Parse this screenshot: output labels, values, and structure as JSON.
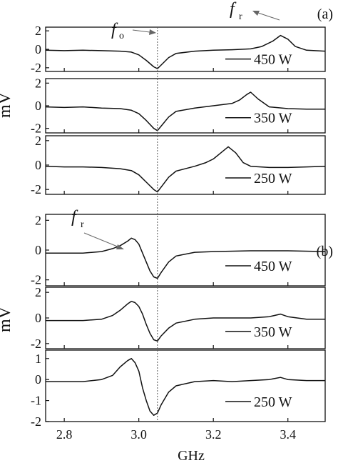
{
  "chart_data": {
    "type": "line",
    "x_label": "GHz",
    "y_label": "mV",
    "x_range": [
      2.75,
      3.5
    ],
    "x_ticks": [
      "2.8",
      "3.0",
      "3.2",
      "3.4"
    ],
    "marker_x": 3.05,
    "panels": [
      {
        "label": "(a)",
        "subplots": [
          {
            "legend": "450 W",
            "ylim": [
              -2.4,
              2.4
            ],
            "y_ticks": [
              "2",
              "0",
              "-2"
            ],
            "series": [
              {
                "name": "450 W",
                "x": [
                  2.75,
                  2.8,
                  2.85,
                  2.9,
                  2.95,
                  2.98,
                  3.0,
                  3.02,
                  3.04,
                  3.05,
                  3.06,
                  3.08,
                  3.1,
                  3.15,
                  3.2,
                  3.25,
                  3.3,
                  3.33,
                  3.36,
                  3.38,
                  3.4,
                  3.42,
                  3.45,
                  3.5
                ],
                "y": [
                  -0.1,
                  -0.15,
                  -0.1,
                  -0.15,
                  -0.2,
                  -0.3,
                  -0.6,
                  -1.2,
                  -1.9,
                  -2.1,
                  -1.7,
                  -0.9,
                  -0.45,
                  -0.2,
                  -0.1,
                  -0.05,
                  0.05,
                  0.3,
                  0.9,
                  1.5,
                  1.1,
                  0.3,
                  -0.1,
                  -0.2
                ]
              }
            ]
          },
          {
            "legend": "350 W",
            "ylim": [
              -2.4,
              2.4
            ],
            "y_ticks": [
              "2",
              "0",
              "-2"
            ],
            "series": [
              {
                "name": "350 W",
                "x": [
                  2.75,
                  2.8,
                  2.85,
                  2.9,
                  2.95,
                  2.98,
                  3.0,
                  3.02,
                  3.04,
                  3.05,
                  3.06,
                  3.08,
                  3.1,
                  3.15,
                  3.2,
                  3.25,
                  3.27,
                  3.29,
                  3.3,
                  3.32,
                  3.35,
                  3.4,
                  3.45,
                  3.5
                ],
                "y": [
                  -0.1,
                  -0.15,
                  -0.1,
                  -0.2,
                  -0.25,
                  -0.4,
                  -0.7,
                  -1.3,
                  -2.0,
                  -2.2,
                  -1.8,
                  -1.0,
                  -0.5,
                  -0.2,
                  0.0,
                  0.2,
                  0.5,
                  1.0,
                  1.2,
                  0.6,
                  -0.1,
                  -0.25,
                  -0.3,
                  -0.3
                ]
              }
            ]
          },
          {
            "legend": "250 W",
            "ylim": [
              -2.4,
              2.4
            ],
            "y_ticks": [
              "2",
              "0",
              "-2"
            ],
            "series": [
              {
                "name": "250 W",
                "x": [
                  2.75,
                  2.8,
                  2.85,
                  2.9,
                  2.95,
                  2.98,
                  3.0,
                  3.02,
                  3.04,
                  3.05,
                  3.06,
                  3.08,
                  3.1,
                  3.15,
                  3.18,
                  3.2,
                  3.22,
                  3.24,
                  3.26,
                  3.28,
                  3.3,
                  3.35,
                  3.4,
                  3.45,
                  3.5
                ],
                "y": [
                  -0.1,
                  -0.15,
                  -0.15,
                  -0.2,
                  -0.3,
                  -0.45,
                  -0.8,
                  -1.4,
                  -2.0,
                  -2.2,
                  -1.8,
                  -1.0,
                  -0.5,
                  -0.1,
                  0.2,
                  0.5,
                  1.0,
                  1.5,
                  1.0,
                  0.2,
                  -0.1,
                  -0.2,
                  -0.2,
                  -0.15,
                  -0.1
                ]
              }
            ]
          }
        ]
      },
      {
        "label": "(b)",
        "subplots": [
          {
            "legend": "450 W",
            "ylim": [
              -2.4,
              2.4
            ],
            "y_ticks": [
              "2",
              "0",
              "-2"
            ],
            "series": [
              {
                "name": "450 W",
                "x": [
                  2.75,
                  2.8,
                  2.85,
                  2.9,
                  2.93,
                  2.95,
                  2.97,
                  2.98,
                  2.99,
                  3.0,
                  3.01,
                  3.02,
                  3.03,
                  3.04,
                  3.05,
                  3.06,
                  3.08,
                  3.1,
                  3.15,
                  3.2,
                  3.3,
                  3.4,
                  3.5
                ],
                "y": [
                  -0.2,
                  -0.2,
                  -0.2,
                  -0.1,
                  0.1,
                  0.3,
                  0.6,
                  0.8,
                  0.7,
                  0.4,
                  -0.2,
                  -0.8,
                  -1.4,
                  -1.8,
                  -1.9,
                  -1.5,
                  -0.8,
                  -0.4,
                  -0.15,
                  -0.1,
                  -0.05,
                  -0.05,
                  -0.1
                ]
              }
            ]
          },
          {
            "legend": "350 W",
            "ylim": [
              -2.4,
              2.4
            ],
            "y_ticks": [
              "2",
              "0",
              "-2"
            ],
            "series": [
              {
                "name": "350 W",
                "x": [
                  2.75,
                  2.8,
                  2.85,
                  2.9,
                  2.93,
                  2.95,
                  2.97,
                  2.98,
                  2.99,
                  3.0,
                  3.01,
                  3.02,
                  3.03,
                  3.04,
                  3.05,
                  3.06,
                  3.08,
                  3.1,
                  3.15,
                  3.2,
                  3.3,
                  3.35,
                  3.38,
                  3.4,
                  3.45,
                  3.5
                ],
                "y": [
                  -0.2,
                  -0.2,
                  -0.2,
                  -0.1,
                  0.2,
                  0.6,
                  1.1,
                  1.3,
                  1.2,
                  0.9,
                  0.3,
                  -0.5,
                  -1.2,
                  -1.7,
                  -1.8,
                  -1.4,
                  -0.8,
                  -0.4,
                  -0.1,
                  0.0,
                  0.0,
                  0.1,
                  0.3,
                  0.1,
                  -0.1,
                  -0.1
                ]
              }
            ]
          },
          {
            "legend": "250 W",
            "ylim": [
              -2.0,
              1.4
            ],
            "y_ticks": [
              "1",
              "0",
              "-1",
              "-2"
            ],
            "series": [
              {
                "name": "250 W",
                "x": [
                  2.75,
                  2.8,
                  2.85,
                  2.9,
                  2.93,
                  2.95,
                  2.97,
                  2.98,
                  2.99,
                  3.0,
                  3.01,
                  3.02,
                  3.03,
                  3.04,
                  3.05,
                  3.06,
                  3.08,
                  3.1,
                  3.15,
                  3.2,
                  3.25,
                  3.3,
                  3.35,
                  3.38,
                  3.4,
                  3.45,
                  3.5
                ],
                "y": [
                  -0.1,
                  -0.1,
                  -0.1,
                  0.0,
                  0.2,
                  0.6,
                  0.9,
                  1.0,
                  0.8,
                  0.4,
                  -0.4,
                  -1.0,
                  -1.5,
                  -1.7,
                  -1.6,
                  -1.2,
                  -0.6,
                  -0.3,
                  -0.1,
                  -0.05,
                  -0.1,
                  -0.05,
                  0.0,
                  0.1,
                  0.0,
                  -0.05,
                  -0.05
                ]
              }
            ]
          }
        ]
      }
    ],
    "annotations": [
      {
        "text": "f",
        "sub": "o",
        "panel": "(a)",
        "points_to": "dip at 3.05 GHz"
      },
      {
        "text": "f",
        "sub": "r",
        "panel": "(a)",
        "points_to": "450 W peak"
      },
      {
        "text": "f",
        "sub": "r",
        "panel": "(b)",
        "points_to": "450 W peak"
      }
    ]
  }
}
